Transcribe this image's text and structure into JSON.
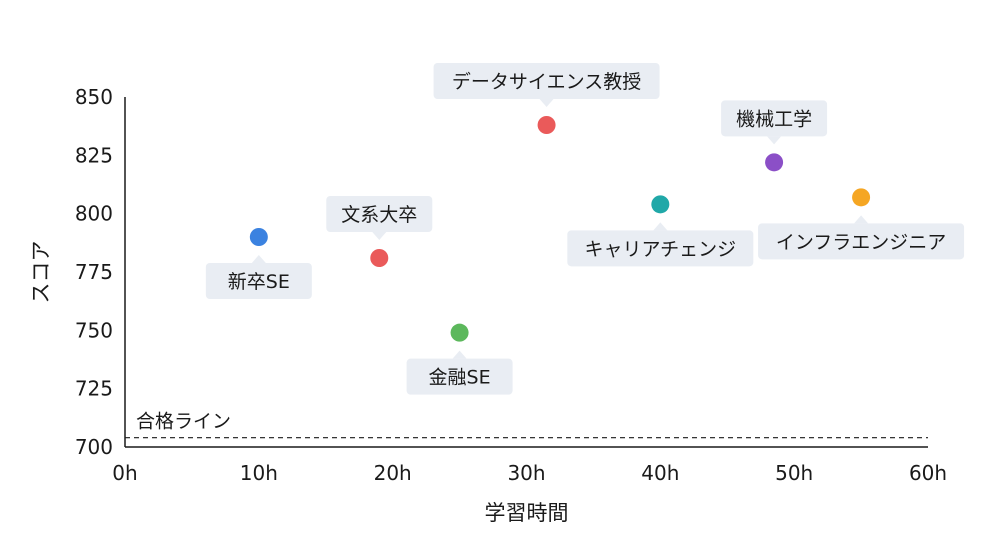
{
  "chart_data": {
    "type": "scatter",
    "xlabel": "学習時間",
    "ylabel": "スコア",
    "xlim": [
      0,
      60
    ],
    "ylim": [
      700,
      850
    ],
    "x_ticks": [
      "0h",
      "10h",
      "20h",
      "30h",
      "40h",
      "50h",
      "60h"
    ],
    "y_ticks": [
      "700",
      "725",
      "750",
      "775",
      "800",
      "825",
      "850"
    ],
    "grid": false,
    "reference_line": {
      "label": "合格ライン",
      "y": 704
    },
    "points": [
      {
        "label": "新卒SE",
        "x": 10,
        "y": 790,
        "color": "#3b82e0",
        "label_position": "below"
      },
      {
        "label": "文系大卒",
        "x": 19,
        "y": 781,
        "color": "#ea5a5a",
        "label_position": "above"
      },
      {
        "label": "金融SE",
        "x": 25,
        "y": 749,
        "color": "#5cb85c",
        "label_position": "below"
      },
      {
        "label": "データサイエンス教授",
        "x": 31.5,
        "y": 838,
        "color": "#ea5a5a",
        "label_position": "above"
      },
      {
        "label": "キャリアチェンジ",
        "x": 40,
        "y": 804,
        "color": "#20a8a8",
        "label_position": "below"
      },
      {
        "label": "機械工学",
        "x": 48.5,
        "y": 822,
        "color": "#8b4fc7",
        "label_position": "above"
      },
      {
        "label": "インフラエンジニア",
        "x": 55,
        "y": 807,
        "color": "#f5a623",
        "label_position": "below"
      }
    ]
  }
}
